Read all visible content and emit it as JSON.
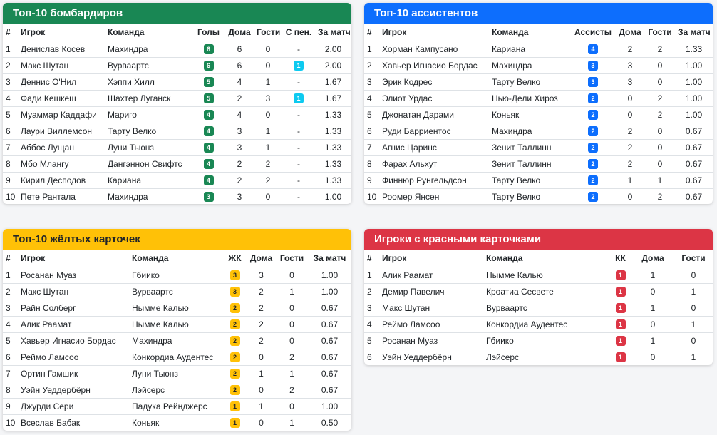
{
  "scorers": {
    "title": "Топ-10 бомбардиров",
    "headers": {
      "num": "#",
      "player": "Игрок",
      "team": "Команда",
      "goals": "Голы",
      "home": "Дома",
      "away": "Гости",
      "pen": "С пен.",
      "per": "За матч"
    },
    "rows": [
      {
        "num": "1",
        "player": "Денислав Косев",
        "team": "Махиндра",
        "goals": "6",
        "home": "6",
        "away": "0",
        "pen": "-",
        "per": "2.00"
      },
      {
        "num": "2",
        "player": "Макс Шутан",
        "team": "Вурваартс",
        "goals": "6",
        "home": "6",
        "away": "0",
        "pen": "1",
        "per": "2.00"
      },
      {
        "num": "3",
        "player": "Деннис О'Нил",
        "team": "Хэппи Хилл",
        "goals": "5",
        "home": "4",
        "away": "1",
        "pen": "-",
        "per": "1.67"
      },
      {
        "num": "4",
        "player": "Фади Кешкеш",
        "team": "Шахтер Луганск",
        "goals": "5",
        "home": "2",
        "away": "3",
        "pen": "1",
        "per": "1.67"
      },
      {
        "num": "5",
        "player": "Муаммар Каддафи",
        "team": "Мариго",
        "goals": "4",
        "home": "4",
        "away": "0",
        "pen": "-",
        "per": "1.33"
      },
      {
        "num": "6",
        "player": "Лаури Виллемсон",
        "team": "Тарту Велко",
        "goals": "4",
        "home": "3",
        "away": "1",
        "pen": "-",
        "per": "1.33"
      },
      {
        "num": "7",
        "player": "Аббос Лущан",
        "team": "Луни Тьюнз",
        "goals": "4",
        "home": "3",
        "away": "1",
        "pen": "-",
        "per": "1.33"
      },
      {
        "num": "8",
        "player": "Мбо Млангу",
        "team": "Дангэннон Свифтс",
        "goals": "4",
        "home": "2",
        "away": "2",
        "pen": "-",
        "per": "1.33"
      },
      {
        "num": "9",
        "player": "Кирил Десподов",
        "team": "Кариана",
        "goals": "4",
        "home": "2",
        "away": "2",
        "pen": "-",
        "per": "1.33"
      },
      {
        "num": "10",
        "player": "Пете Рантала",
        "team": "Махиндра",
        "goals": "3",
        "home": "3",
        "away": "0",
        "pen": "-",
        "per": "1.00"
      }
    ]
  },
  "assists": {
    "title": "Топ-10 ассистентов",
    "headers": {
      "num": "#",
      "player": "Игрок",
      "team": "Команда",
      "assists": "Ассисты",
      "home": "Дома",
      "away": "Гости",
      "per": "За матч"
    },
    "rows": [
      {
        "num": "1",
        "player": "Хорман Кампусано",
        "team": "Кариана",
        "assists": "4",
        "home": "2",
        "away": "2",
        "per": "1.33"
      },
      {
        "num": "2",
        "player": "Хавьер Игнасио Бордас",
        "team": "Махиндра",
        "assists": "3",
        "home": "3",
        "away": "0",
        "per": "1.00"
      },
      {
        "num": "3",
        "player": "Эрик Кодрес",
        "team": "Тарту Велко",
        "assists": "3",
        "home": "3",
        "away": "0",
        "per": "1.00"
      },
      {
        "num": "4",
        "player": "Элиот Урдас",
        "team": "Нью-Дели Хироз",
        "assists": "2",
        "home": "0",
        "away": "2",
        "per": "1.00"
      },
      {
        "num": "5",
        "player": "Джонатан Дарами",
        "team": "Коньяк",
        "assists": "2",
        "home": "0",
        "away": "2",
        "per": "1.00"
      },
      {
        "num": "6",
        "player": "Руди Барриентос",
        "team": "Махиндра",
        "assists": "2",
        "home": "2",
        "away": "0",
        "per": "0.67"
      },
      {
        "num": "7",
        "player": "Агнис Царинс",
        "team": "Зенит Таллинн",
        "assists": "2",
        "home": "2",
        "away": "0",
        "per": "0.67"
      },
      {
        "num": "8",
        "player": "Фарах Альхут",
        "team": "Зенит Таллинн",
        "assists": "2",
        "home": "2",
        "away": "0",
        "per": "0.67"
      },
      {
        "num": "9",
        "player": "Финнюр Рунгельдсон",
        "team": "Тарту Велко",
        "assists": "2",
        "home": "1",
        "away": "1",
        "per": "0.67"
      },
      {
        "num": "10",
        "player": "Роомер Янсен",
        "team": "Тарту Велко",
        "assists": "2",
        "home": "0",
        "away": "2",
        "per": "0.67"
      }
    ]
  },
  "yellow": {
    "title": "Топ-10 жёлтых карточек",
    "headers": {
      "num": "#",
      "player": "Игрок",
      "team": "Команда",
      "yc": "ЖК",
      "home": "Дома",
      "away": "Гости",
      "per": "За матч"
    },
    "rows": [
      {
        "num": "1",
        "player": "Росанан Муаз",
        "team": "Гбиико",
        "yc": "3",
        "home": "3",
        "away": "0",
        "per": "1.00"
      },
      {
        "num": "2",
        "player": "Макс Шутан",
        "team": "Вурваартс",
        "yc": "3",
        "home": "2",
        "away": "1",
        "per": "1.00"
      },
      {
        "num": "3",
        "player": "Райн Солберг",
        "team": "Нымме Калью",
        "yc": "2",
        "home": "2",
        "away": "0",
        "per": "0.67"
      },
      {
        "num": "4",
        "player": "Алик Раамат",
        "team": "Нымме Калью",
        "yc": "2",
        "home": "2",
        "away": "0",
        "per": "0.67"
      },
      {
        "num": "5",
        "player": "Хавьер Игнасио Бордас",
        "team": "Махиндра",
        "yc": "2",
        "home": "2",
        "away": "0",
        "per": "0.67"
      },
      {
        "num": "6",
        "player": "Реймо Ламсоо",
        "team": "Конкордиа Аудентес",
        "yc": "2",
        "home": "0",
        "away": "2",
        "per": "0.67"
      },
      {
        "num": "7",
        "player": "Ортин Гамшик",
        "team": "Луни Тьюнз",
        "yc": "2",
        "home": "1",
        "away": "1",
        "per": "0.67"
      },
      {
        "num": "8",
        "player": "Уэйн Уеддербёрн",
        "team": "Лэйсерс",
        "yc": "2",
        "home": "0",
        "away": "2",
        "per": "0.67"
      },
      {
        "num": "9",
        "player": "Джурди Сери",
        "team": "Падука Рейнджерс",
        "yc": "1",
        "home": "1",
        "away": "0",
        "per": "1.00"
      },
      {
        "num": "10",
        "player": "Всеслав Бабак",
        "team": "Коньяк",
        "yc": "1",
        "home": "0",
        "away": "1",
        "per": "0.50"
      }
    ]
  },
  "red": {
    "title": "Игроки с красными карточками",
    "headers": {
      "num": "#",
      "player": "Игрок",
      "team": "Команда",
      "rc": "КК",
      "home": "Дома",
      "away": "Гости"
    },
    "rows": [
      {
        "num": "1",
        "player": "Алик Раамат",
        "team": "Нымме Калью",
        "rc": "1",
        "home": "1",
        "away": "0"
      },
      {
        "num": "2",
        "player": "Демир Павелич",
        "team": "Кроатиа Сесвете",
        "rc": "1",
        "home": "0",
        "away": "1"
      },
      {
        "num": "3",
        "player": "Макс Шутан",
        "team": "Вурваартс",
        "rc": "1",
        "home": "1",
        "away": "0"
      },
      {
        "num": "4",
        "player": "Реймо Ламсоо",
        "team": "Конкордиа Аудентес",
        "rc": "1",
        "home": "0",
        "away": "1"
      },
      {
        "num": "5",
        "player": "Росанан Муаз",
        "team": "Гбиико",
        "rc": "1",
        "home": "1",
        "away": "0"
      },
      {
        "num": "6",
        "player": "Уэйн Уеддербёрн",
        "team": "Лэйсерс",
        "rc": "1",
        "home": "0",
        "away": "1"
      }
    ]
  },
  "colors": {
    "green": "#198754",
    "blue": "#0d6efd",
    "cyan": "#0dcaf0",
    "yellow": "#ffc107",
    "red": "#dc3545"
  }
}
